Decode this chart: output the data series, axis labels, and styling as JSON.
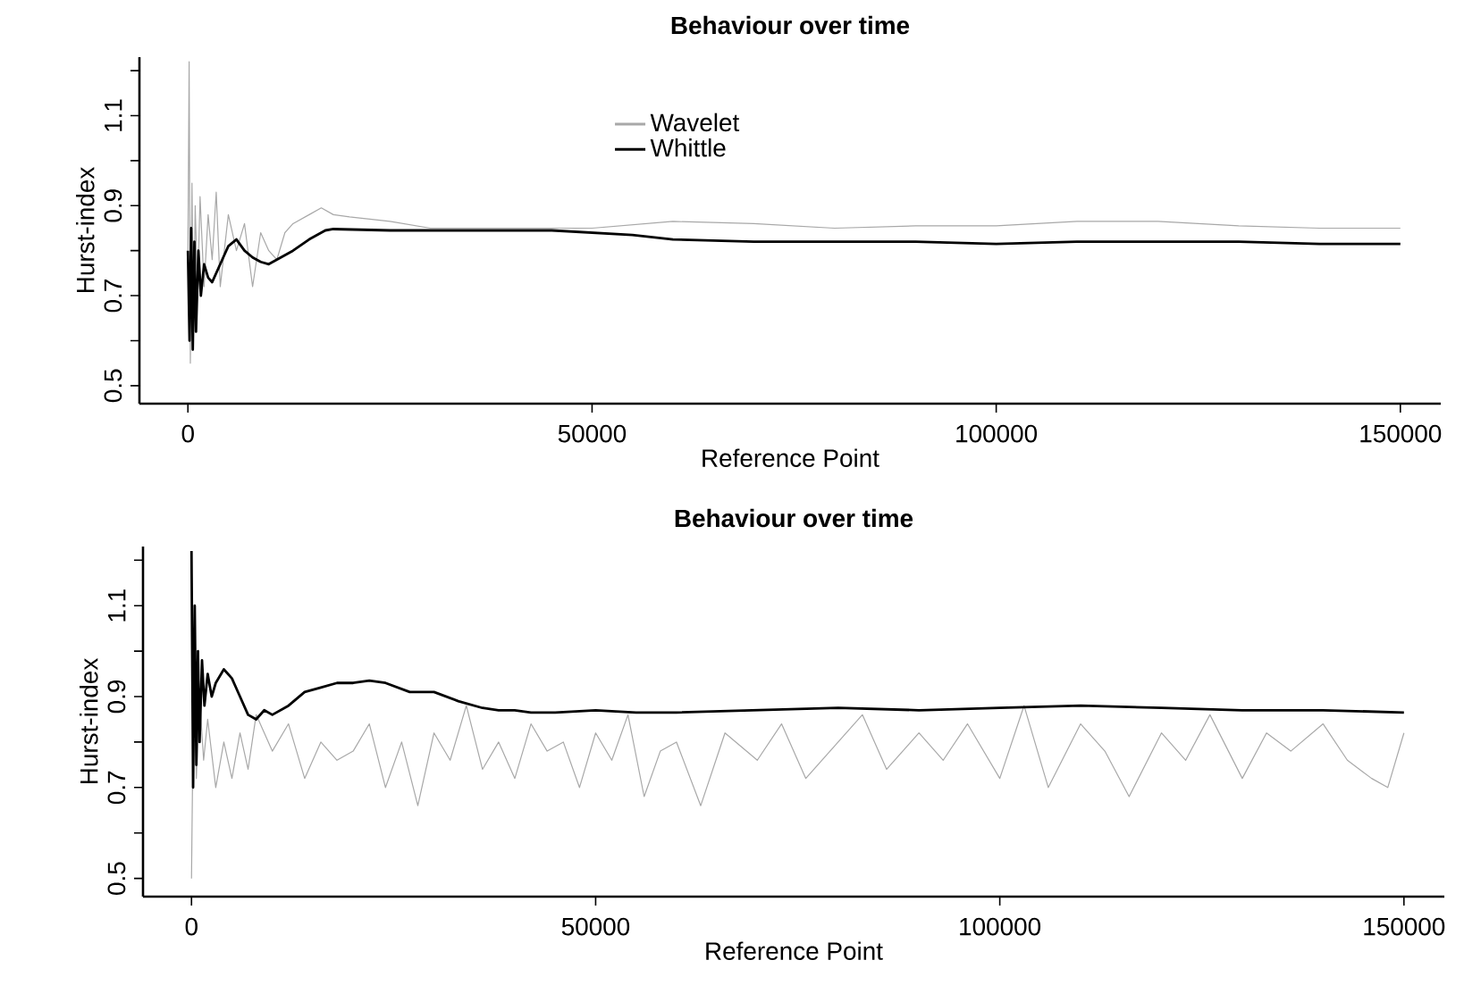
{
  "chart_data": [
    {
      "type": "line",
      "title": "Behaviour over time",
      "xlabel": "Reference Point",
      "ylabel": "Hurst-index",
      "xlim": [
        -6000,
        155000
      ],
      "ylim": [
        0.46,
        1.23
      ],
      "xticks": [
        0,
        50000,
        100000,
        150000
      ],
      "yticks": [
        {
          "value": 0.5,
          "label": "0.5"
        },
        {
          "value": 0.6,
          "label": null
        },
        {
          "value": 0.7,
          "label": "0.7"
        },
        {
          "value": 0.8,
          "label": null
        },
        {
          "value": 0.9,
          "label": "0.9"
        },
        {
          "value": 1.0,
          "label": null
        },
        {
          "value": 1.1,
          "label": "1.1"
        },
        {
          "value": 1.2,
          "label": null
        }
      ],
      "legend": "top",
      "grid": false,
      "series": [
        {
          "name": "Wavelet",
          "color": "#a8a8a8",
          "x": [
            0,
            150,
            300,
            500,
            700,
            900,
            1200,
            1500,
            2000,
            2500,
            3000,
            3500,
            4000,
            5000,
            6000,
            7000,
            8000,
            9000,
            10000,
            11000,
            12000,
            13000,
            15000,
            16500,
            18000,
            20000,
            25000,
            30000,
            40000,
            50000,
            60000,
            70000,
            80000,
            90000,
            100000,
            110000,
            120000,
            130000,
            140000,
            150000
          ],
          "values": [
            0.8,
            1.22,
            0.55,
            0.95,
            0.62,
            0.9,
            0.7,
            0.92,
            0.72,
            0.88,
            0.78,
            0.93,
            0.72,
            0.88,
            0.8,
            0.86,
            0.72,
            0.84,
            0.8,
            0.78,
            0.84,
            0.86,
            0.88,
            0.895,
            0.88,
            0.875,
            0.865,
            0.85,
            0.85,
            0.85,
            0.865,
            0.86,
            0.85,
            0.855,
            0.855,
            0.865,
            0.865,
            0.855,
            0.85,
            0.85
          ]
        },
        {
          "name": "Whittle",
          "color": "#000000",
          "x": [
            0,
            200,
            400,
            600,
            800,
            1000,
            1300,
            1600,
            2000,
            2500,
            3000,
            4000,
            5000,
            6000,
            7000,
            8000,
            9000,
            10000,
            11000,
            13000,
            15000,
            17000,
            18000,
            25000,
            35000,
            45000,
            55000,
            60000,
            70000,
            80000,
            90000,
            100000,
            110000,
            120000,
            130000,
            140000,
            150000
          ],
          "values": [
            0.8,
            0.6,
            0.85,
            0.58,
            0.82,
            0.62,
            0.8,
            0.7,
            0.77,
            0.74,
            0.73,
            0.77,
            0.81,
            0.825,
            0.8,
            0.785,
            0.775,
            0.77,
            0.78,
            0.8,
            0.825,
            0.845,
            0.848,
            0.845,
            0.845,
            0.845,
            0.835,
            0.825,
            0.82,
            0.82,
            0.82,
            0.815,
            0.82,
            0.82,
            0.82,
            0.815,
            0.815
          ]
        }
      ]
    },
    {
      "type": "line",
      "title": "Behaviour over time",
      "xlabel": "Reference Point",
      "ylabel": "Hurst-index",
      "xlim": [
        -6000,
        155000
      ],
      "ylim": [
        0.46,
        1.23
      ],
      "xticks": [
        0,
        50000,
        100000,
        150000
      ],
      "yticks": [
        {
          "value": 0.5,
          "label": "0.5"
        },
        {
          "value": 0.6,
          "label": null
        },
        {
          "value": 0.7,
          "label": "0.7"
        },
        {
          "value": 0.8,
          "label": null
        },
        {
          "value": 0.9,
          "label": "0.9"
        },
        {
          "value": 1.0,
          "label": null
        },
        {
          "value": 1.1,
          "label": "1.1"
        },
        {
          "value": 1.2,
          "label": null
        }
      ],
      "grid": false,
      "series": [
        {
          "color": "#a8a8a8",
          "x": [
            0,
            300,
            600,
            1000,
            1500,
            2000,
            3000,
            4000,
            5000,
            6000,
            7000,
            8000,
            10000,
            12000,
            14000,
            16000,
            18000,
            20000,
            22000,
            24000,
            26000,
            28000,
            30000,
            32000,
            34000,
            36000,
            38000,
            40000,
            42000,
            44000,
            46000,
            48000,
            50000,
            52000,
            54000,
            56000,
            58000,
            60000,
            63000,
            66000,
            70000,
            73000,
            76000,
            80000,
            83000,
            86000,
            90000,
            93000,
            96000,
            100000,
            103000,
            106000,
            110000,
            113000,
            116000,
            120000,
            123000,
            126000,
            130000,
            133000,
            136000,
            140000,
            143000,
            146000,
            148000,
            150000
          ],
          "values": [
            0.5,
            1.0,
            0.72,
            0.9,
            0.76,
            0.85,
            0.7,
            0.8,
            0.72,
            0.82,
            0.74,
            0.86,
            0.78,
            0.84,
            0.72,
            0.8,
            0.76,
            0.78,
            0.84,
            0.7,
            0.8,
            0.66,
            0.82,
            0.76,
            0.88,
            0.74,
            0.8,
            0.72,
            0.84,
            0.78,
            0.8,
            0.7,
            0.82,
            0.76,
            0.86,
            0.68,
            0.78,
            0.8,
            0.66,
            0.82,
            0.76,
            0.84,
            0.72,
            0.8,
            0.86,
            0.74,
            0.82,
            0.76,
            0.84,
            0.72,
            0.88,
            0.7,
            0.84,
            0.78,
            0.68,
            0.82,
            0.76,
            0.86,
            0.72,
            0.82,
            0.78,
            0.84,
            0.76,
            0.72,
            0.7,
            0.82
          ]
        },
        {
          "color": "#000000",
          "x": [
            0,
            200,
            400,
            600,
            800,
            1000,
            1300,
            1600,
            2000,
            2500,
            3000,
            4000,
            5000,
            6000,
            7000,
            8000,
            9000,
            10000,
            12000,
            14000,
            16000,
            18000,
            20000,
            22000,
            24000,
            27000,
            30000,
            33000,
            36000,
            38000,
            40000,
            42000,
            45000,
            50000,
            55000,
            60000,
            70000,
            80000,
            90000,
            100000,
            110000,
            120000,
            130000,
            140000,
            150000
          ],
          "values": [
            1.22,
            0.7,
            1.1,
            0.75,
            1.0,
            0.8,
            0.98,
            0.88,
            0.95,
            0.9,
            0.93,
            0.96,
            0.94,
            0.9,
            0.86,
            0.85,
            0.87,
            0.86,
            0.88,
            0.91,
            0.92,
            0.93,
            0.93,
            0.935,
            0.93,
            0.91,
            0.91,
            0.89,
            0.875,
            0.87,
            0.87,
            0.865,
            0.865,
            0.87,
            0.865,
            0.865,
            0.87,
            0.875,
            0.87,
            0.875,
            0.88,
            0.875,
            0.87,
            0.87,
            0.865
          ]
        }
      ]
    }
  ]
}
